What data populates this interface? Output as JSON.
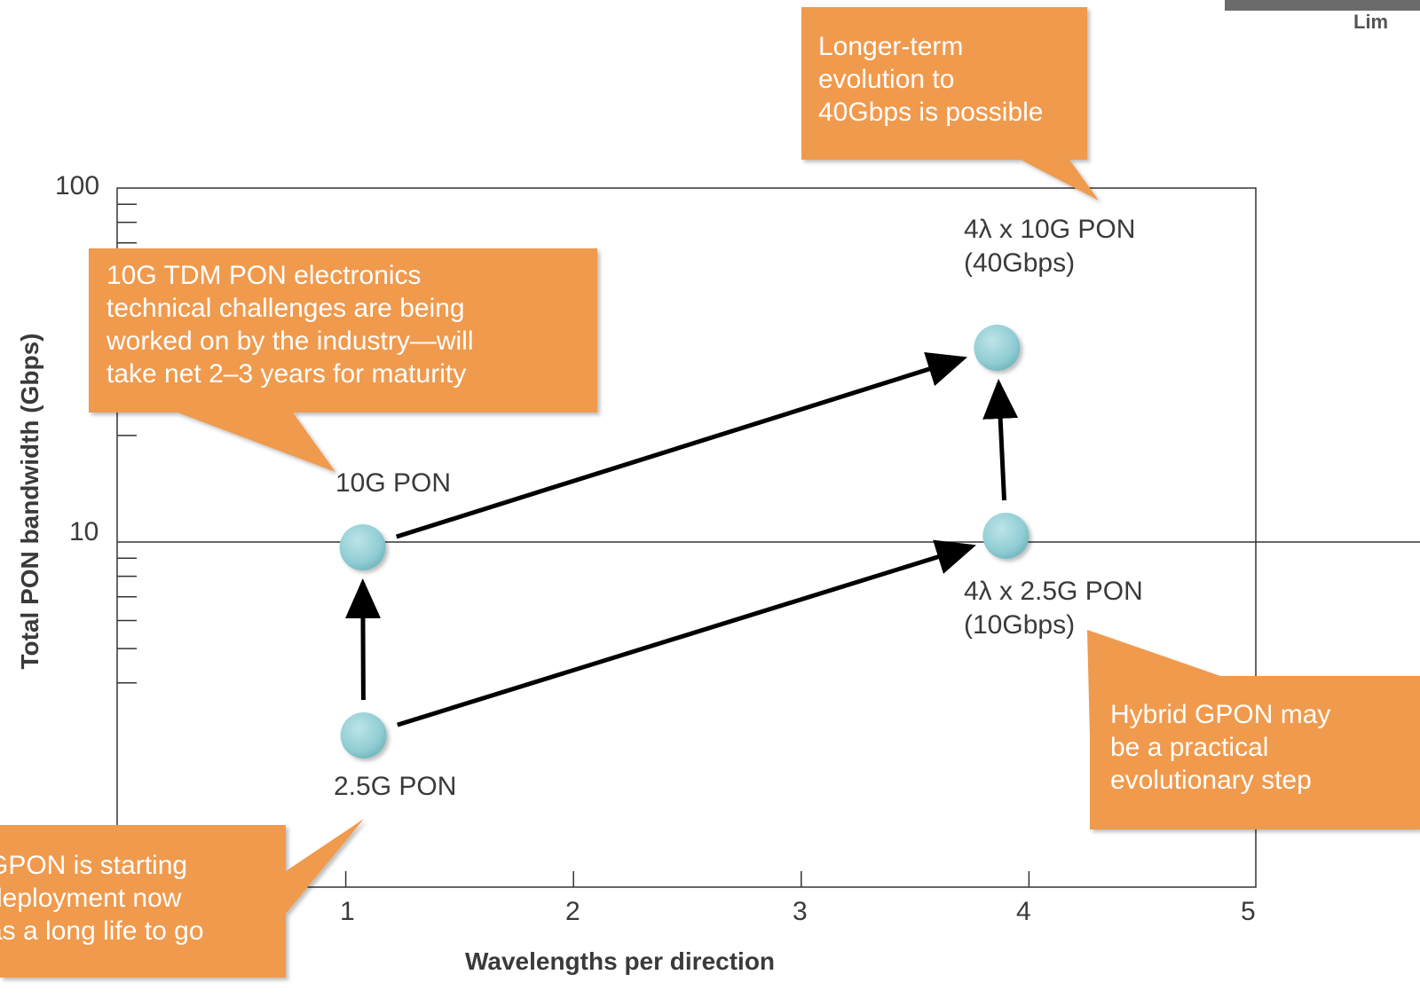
{
  "chart_data": {
    "type": "scatter",
    "xlabel": "Wavelengths per direction",
    "ylabel": "Total PON bandwidth (Gbps)",
    "x_scale": "linear",
    "y_scale": "log",
    "xlim": [
      0,
      5
    ],
    "ylim": [
      1,
      100
    ],
    "x_ticks": [
      "1",
      "2",
      "3",
      "4",
      "5"
    ],
    "y_ticks": [
      "10",
      "100"
    ],
    "grid": "horizontal line at 10",
    "points": [
      {
        "id": "p25",
        "label": "2.5G PON",
        "x": 1,
        "y": 2.5
      },
      {
        "id": "p10",
        "label": "10G PON",
        "x": 1,
        "y": 10
      },
      {
        "id": "p4x25",
        "label": "4λ x 2.5G PON\n(10Gbps)",
        "x": 4,
        "y": 10
      },
      {
        "id": "p4x10",
        "label": "4λ x 10G PON\n(40Gbps)",
        "x": 4,
        "y": 40
      }
    ],
    "arrows": [
      {
        "from": "p25",
        "to": "p10"
      },
      {
        "from": "p25",
        "to": "p4x25"
      },
      {
        "from": "p10",
        "to": "p4x10"
      },
      {
        "from": "p4x25",
        "to": "p4x10"
      }
    ],
    "annotations": [
      {
        "id": "c_top",
        "text": "Longer-term\nevolution to\n40Gbps is possible"
      },
      {
        "id": "c_10g",
        "text": "10G TDM PON electronics\ntechnical challenges are being\nworked on by the industry—will\ntake net 2–3 years for maturity"
      },
      {
        "id": "c_gpon",
        "text": "GPON is starting\ndeployment now\nas a long life to go"
      },
      {
        "id": "c_hybrid",
        "text": "Hybrid GPON may\nbe a practical\nevolutionary step"
      }
    ]
  },
  "colors": {
    "callout_fill": "#F09A4E",
    "point_fill": "#8FCDD3",
    "axis": "#333333",
    "arrow": "#000000"
  },
  "logo": {
    "text": "Lim"
  }
}
